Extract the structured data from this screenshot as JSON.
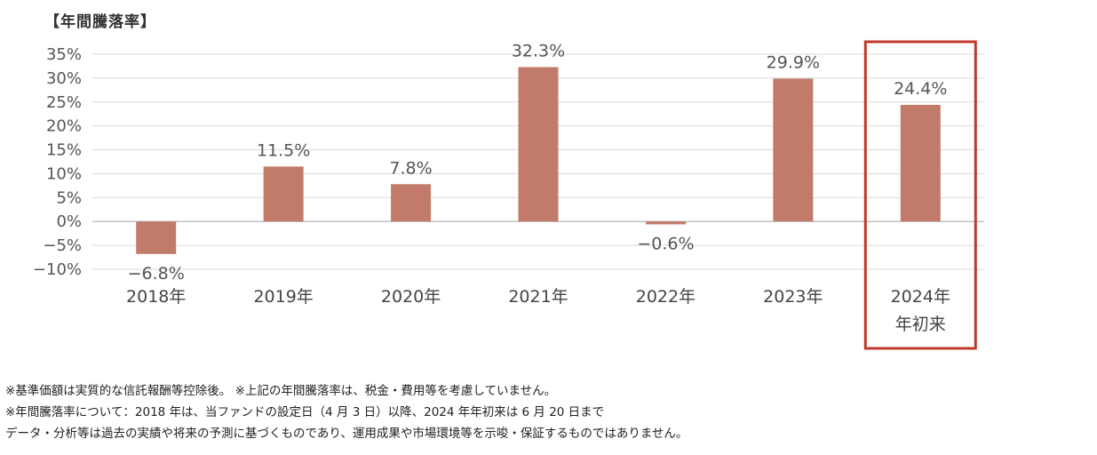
{
  "chart_data": {
    "type": "bar",
    "title": "【年間騰落率】",
    "categories": [
      "2018年",
      "2019年",
      "2020年",
      "2021年",
      "2022年",
      "2023年",
      "2024年\n年初来"
    ],
    "values": [
      -6.8,
      11.5,
      7.8,
      32.3,
      -0.6,
      29.9,
      24.4
    ],
    "value_labels": [
      "−6.8%",
      "11.5%",
      "7.8%",
      "32.3%",
      "−0.6%",
      "29.9%",
      "24.4%"
    ],
    "ylim": [
      -10,
      35
    ],
    "yticks": [
      35,
      30,
      25,
      20,
      15,
      10,
      5,
      0,
      -5,
      -10
    ],
    "ytick_labels": [
      "35%",
      "30%",
      "25%",
      "20%",
      "15%",
      "10%",
      "5%",
      "0%",
      "−5%",
      "−10%"
    ],
    "grid": true,
    "highlighted_category_index": 6,
    "colors": {
      "bar": "#c27b6a",
      "highlight_box": "#c0392b",
      "grid": "#d9d9d9",
      "zero_line": "#a6a6a6"
    }
  },
  "notes": [
    "※基準価額は実質的な信託報酬等控除後。 ※上記の年間騰落率は、税金・費用等を考慮していません。",
    "※年間騰落率について：2018 年は、当ファンドの設定日（4 月 3 日）以降、2024 年年初来は 6 月 20 日まで",
    "データ・分析等は過去の実績や将来の予測に基づくものであり、運用成果や市場環境等を示唆・保証するものではありません。"
  ]
}
